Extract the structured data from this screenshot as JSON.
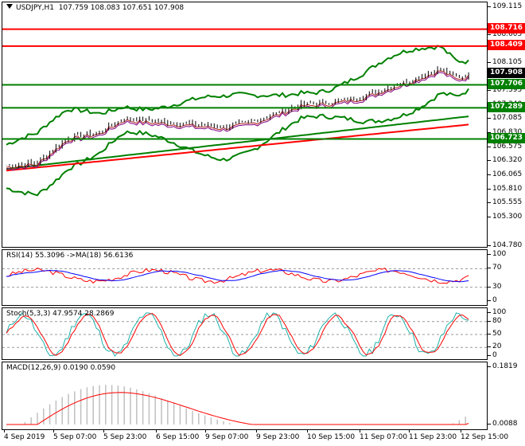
{
  "main": {
    "symbol": "USDJPY,H1",
    "ohlc": "107.759 108.083 107.651 107.908",
    "ticks": [
      "109.115",
      "108.605",
      "108.360",
      "108.105",
      "107.850",
      "107.595",
      "107.340",
      "107.085",
      "106.830",
      "106.575",
      "106.320",
      "106.065",
      "105.810",
      "105.555",
      "105.300",
      "104.780"
    ],
    "levels": [
      {
        "label": "108.716",
        "value": 108.716,
        "color": "#ff0000",
        "label_bg": "#ff0000",
        "label_color": "#ffffff"
      },
      {
        "label": "108.409",
        "value": 108.409,
        "color": "#ff0000",
        "label_bg": "#ff0000",
        "label_color": "#ffffff"
      },
      {
        "label": "107.706",
        "value": 107.706,
        "color": "#008000",
        "label_bg": "#008000",
        "label_color": "#ffffff"
      },
      {
        "label": "107.289",
        "value": 107.289,
        "color": "#008000",
        "label_bg": "#008000",
        "label_color": "#ffffff"
      },
      {
        "label": "106.723",
        "value": 106.723,
        "color": "#008000",
        "label_bg": "#008000",
        "label_color": "#ffffff"
      }
    ],
    "current_price": {
      "label": "107.908",
      "value": 107.908,
      "label_bg": "#000000",
      "label_color": "#ffffff"
    }
  },
  "rsi": {
    "title": "RSI(14) 55.3096 ->MA(18) 56.6136",
    "ticks": [
      "100",
      "70",
      "30",
      "0"
    ]
  },
  "stoch": {
    "title": "Stoch(5,3,3) 47.9574 28.2869",
    "ticks": [
      "100",
      "80",
      "50",
      "20",
      "0"
    ]
  },
  "macd": {
    "title": "MACD(12,26,9) 0.0190 0.0590",
    "ticks": [
      "0.1819",
      "0.0088"
    ]
  },
  "xaxis": [
    "4 Sep 2019",
    "5 Sep 07:00",
    "5 Sep 23:00",
    "6 Sep 15:00",
    "9 Sep 07:00",
    "9 Sep 23:00",
    "10 Sep 15:00",
    "11 Sep 07:00",
    "11 Sep 23:00",
    "12 Sep 15:00"
  ],
  "colors": {
    "candle": "#000000",
    "bands": "#008000",
    "ma_slow": "#ff0000",
    "ma_long_green": "#008000",
    "rsi_line": "#0000ff",
    "rsi_price": "#ff0000",
    "stoch_main": "#20b2aa",
    "stoch_signal": "#ff0000",
    "macd_hist": "#c0c0c0",
    "macd_signal": "#ff0000"
  }
}
